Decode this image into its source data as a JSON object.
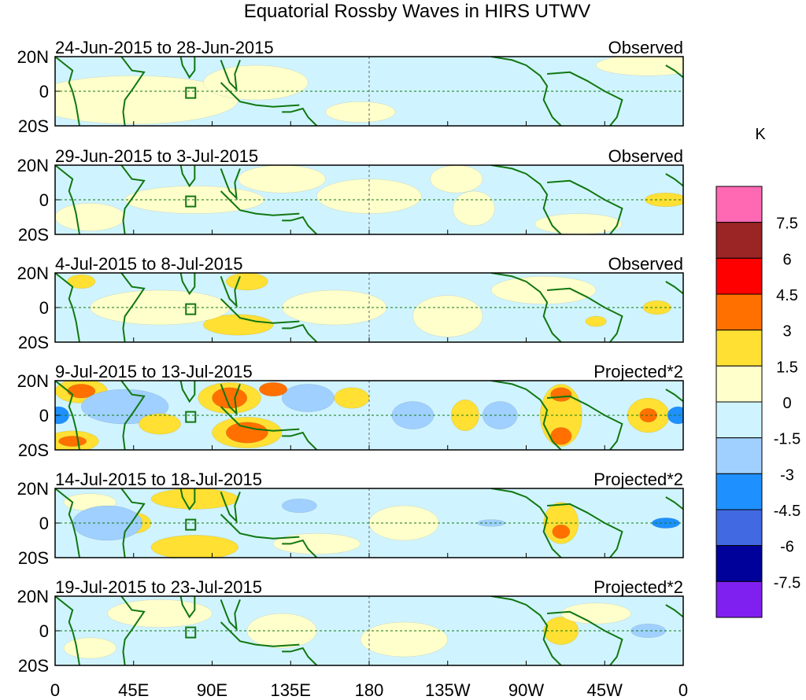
{
  "chart_data": {
    "type": "heatmap",
    "title": "Equatorial Rossby Waves in HIRS UTWV",
    "units": "K",
    "x_ticks": [
      "0",
      "45E",
      "90E",
      "135E",
      "180",
      "135W",
      "90W",
      "45W",
      "0"
    ],
    "x_tick_values": [
      0,
      45,
      90,
      135,
      180,
      225,
      270,
      315,
      360
    ],
    "y_ticks": [
      "20N",
      "0",
      "20S"
    ],
    "y_tick_values": [
      20,
      0,
      -20
    ],
    "xlim": [
      0,
      360
    ],
    "ylim": [
      -20,
      20
    ],
    "levels": [
      "7.5",
      "6",
      "4.5",
      "3",
      "1.5",
      "0",
      "-1.5",
      "-3",
      "-4.5",
      "-6",
      "-7.5"
    ],
    "level_values": [
      7.5,
      6,
      4.5,
      3,
      1.5,
      0,
      -1.5,
      -3,
      -4.5,
      -6,
      -7.5
    ],
    "colors": [
      "#ff69b4",
      "#9b2424",
      "#ff0000",
      "#ff7000",
      "#ffe033",
      "#ffffcc",
      "#d0f4ff",
      "#a0d0ff",
      "#1e90ff",
      "#4169e1",
      "#00009b",
      "#8020f0"
    ],
    "panels": [
      {
        "date_range": "24-Jun-2015 to 28-Jun-2015",
        "type": "Observed",
        "features": [
          [
            45,
            -5,
            60,
            14,
            0.8
          ],
          [
            115,
            5,
            30,
            10,
            0.8
          ],
          [
            175,
            -12,
            20,
            6,
            0.8
          ],
          [
            340,
            15,
            30,
            6,
            0.8
          ]
        ]
      },
      {
        "date_range": "29-Jun-2015 to 3-Jul-2015",
        "type": "Observed",
        "features": [
          [
            80,
            0,
            40,
            8,
            0.8
          ],
          [
            130,
            12,
            25,
            8,
            0.8
          ],
          [
            180,
            2,
            30,
            10,
            0.8
          ],
          [
            230,
            12,
            15,
            8,
            0.8
          ],
          [
            240,
            -5,
            12,
            10,
            0.8
          ],
          [
            300,
            -14,
            25,
            6,
            0.8
          ],
          [
            350,
            0,
            12,
            4,
            2
          ],
          [
            20,
            -10,
            20,
            8,
            0.8
          ]
        ]
      },
      {
        "date_range": "4-Jul-2015 to 8-Jul-2015",
        "type": "Observed",
        "features": [
          [
            15,
            15,
            8,
            4,
            2
          ],
          [
            105,
            -10,
            20,
            6,
            2
          ],
          [
            110,
            15,
            12,
            5,
            2
          ],
          [
            160,
            0,
            30,
            10,
            0.8
          ],
          [
            225,
            -5,
            20,
            12,
            0.8
          ],
          [
            345,
            0,
            8,
            4,
            2
          ],
          [
            310,
            -8,
            6,
            3,
            2
          ],
          [
            60,
            0,
            40,
            10,
            0.8
          ],
          [
            280,
            10,
            30,
            8,
            0.8
          ]
        ]
      },
      {
        "date_range": "9-Jul-2015 to 13-Jul-2015",
        "type": "Projected*2",
        "features": [
          [
            15,
            14,
            15,
            7,
            2
          ],
          [
            15,
            14,
            8,
            4,
            3.5
          ],
          [
            10,
            -15,
            15,
            6,
            2
          ],
          [
            10,
            -15,
            8,
            3,
            3.5
          ],
          [
            100,
            10,
            18,
            9,
            2
          ],
          [
            100,
            10,
            10,
            6,
            3.5
          ],
          [
            110,
            -10,
            20,
            9,
            2
          ],
          [
            110,
            -10,
            12,
            6,
            3.5
          ],
          [
            235,
            0,
            8,
            9,
            2
          ],
          [
            290,
            0,
            12,
            18,
            2
          ],
          [
            290,
            -12,
            6,
            5,
            3.5
          ],
          [
            290,
            12,
            6,
            4,
            3.5
          ],
          [
            340,
            0,
            12,
            10,
            2
          ],
          [
            340,
            0,
            5,
            4,
            3.5
          ],
          [
            2,
            0,
            6,
            5,
            -3.5
          ],
          [
            357,
            0,
            6,
            5,
            -3.5
          ],
          [
            40,
            5,
            25,
            10,
            -2
          ],
          [
            145,
            10,
            15,
            8,
            -2
          ],
          [
            205,
            0,
            12,
            8,
            -2
          ],
          [
            255,
            0,
            10,
            8,
            -2
          ],
          [
            60,
            -5,
            12,
            6,
            2
          ],
          [
            170,
            10,
            10,
            6,
            2
          ],
          [
            125,
            15,
            8,
            4,
            3.5
          ]
        ]
      },
      {
        "date_range": "14-Jul-2015 to 18-Jul-2015",
        "type": "Projected*2",
        "features": [
          [
            80,
            14,
            25,
            6,
            2
          ],
          [
            80,
            -14,
            25,
            7,
            2
          ],
          [
            20,
            12,
            15,
            5,
            0.8
          ],
          [
            45,
            0,
            10,
            6,
            2
          ],
          [
            290,
            0,
            10,
            12,
            2
          ],
          [
            290,
            -5,
            5,
            4,
            3.5
          ],
          [
            150,
            -12,
            25,
            6,
            0.8
          ],
          [
            200,
            0,
            20,
            10,
            0.8
          ],
          [
            350,
            0,
            8,
            3,
            -3.5
          ],
          [
            30,
            0,
            20,
            10,
            -2
          ],
          [
            250,
            0,
            8,
            2,
            -2
          ],
          [
            140,
            10,
            10,
            4,
            -2
          ]
        ]
      },
      {
        "date_range": "19-Jul-2015 to 23-Jul-2015",
        "type": "Projected*2",
        "features": [
          [
            60,
            10,
            30,
            8,
            0.8
          ],
          [
            130,
            0,
            20,
            10,
            0.8
          ],
          [
            200,
            -5,
            25,
            10,
            0.8
          ],
          [
            290,
            0,
            10,
            8,
            2
          ],
          [
            310,
            10,
            20,
            6,
            0.8
          ],
          [
            20,
            -10,
            15,
            6,
            0.8
          ],
          [
            340,
            0,
            10,
            4,
            -2
          ]
        ]
      }
    ]
  }
}
